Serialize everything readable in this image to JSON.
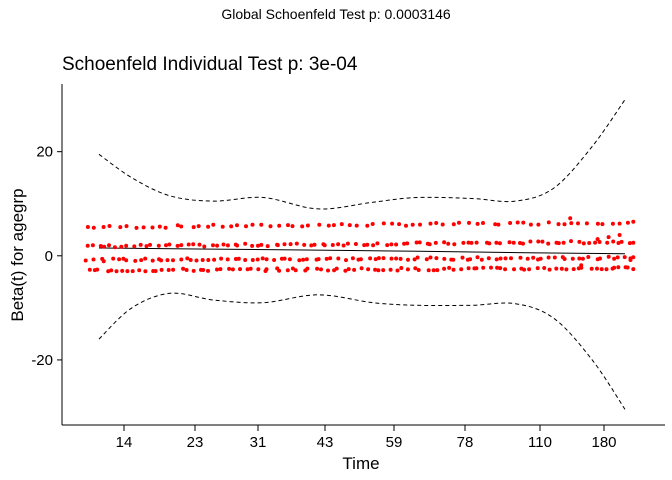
{
  "suptitle": "Global Schoenfeld Test p: 0.0003146",
  "chart_data": {
    "type": "scatter",
    "title": "Schoenfeld Individual Test p: 3e-04",
    "xlabel": "Time",
    "ylabel": "Beta(t) for agegrp",
    "x_ticks": [
      "14",
      "23",
      "31",
      "43",
      "59",
      "78",
      "110",
      "180"
    ],
    "y_ticks": [
      -20,
      0,
      20
    ],
    "x_range_rank": [
      0.0,
      1.0
    ],
    "ylim": [
      -32.5,
      33
    ],
    "grid": false,
    "point_color": "#ff0000",
    "residual_levels": [
      5.5,
      1.8,
      -0.8,
      -2.8
    ],
    "fit_line": {
      "x": [
        0.02,
        0.2,
        0.5,
        0.8,
        0.98
      ],
      "y": [
        1.5,
        1.3,
        1.0,
        0.6,
        0.4
      ]
    },
    "upper_band": {
      "x": [
        0.02,
        0.08,
        0.15,
        0.23,
        0.32,
        0.42,
        0.52,
        0.6,
        0.7,
        0.78,
        0.85,
        0.92,
        0.98
      ],
      "y": [
        19.5,
        15,
        11.5,
        10.5,
        11.2,
        9,
        10.3,
        11.2,
        11,
        10.5,
        13,
        21,
        30
      ]
    },
    "lower_band": {
      "x": [
        0.02,
        0.08,
        0.15,
        0.23,
        0.32,
        0.42,
        0.52,
        0.6,
        0.7,
        0.78,
        0.85,
        0.92,
        0.98
      ],
      "y": [
        -16,
        -10,
        -7.2,
        -8.5,
        -9,
        -7.5,
        -9,
        -9.5,
        -9.5,
        -9.2,
        -12,
        -20,
        -29.5
      ]
    }
  }
}
